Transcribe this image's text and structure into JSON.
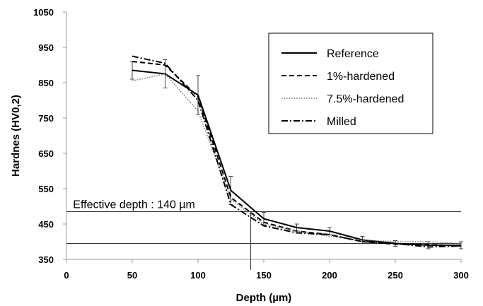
{
  "chart_data": {
    "type": "line",
    "title": "",
    "xlabel": "Depth (µm)",
    "ylabel": "Hardnes (HV0,2)",
    "xlim": [
      0,
      300
    ],
    "ylim": [
      350,
      1050
    ],
    "xticks": [
      0,
      50,
      100,
      150,
      200,
      250,
      300
    ],
    "yticks": [
      350,
      450,
      550,
      650,
      750,
      850,
      950,
      1050
    ],
    "grid": false,
    "legend_position": "top-right",
    "x": [
      50,
      75,
      100,
      125,
      150,
      175,
      200,
      225,
      250,
      275,
      300
    ],
    "series": [
      {
        "name": "Reference",
        "dash": "solid",
        "color": "#000000",
        "values": [
          885,
          875,
          815,
          545,
          465,
          440,
          430,
          405,
          395,
          390,
          390
        ],
        "error": [
          25,
          40,
          55,
          40,
          18,
          10,
          10,
          10,
          8,
          10,
          10
        ]
      },
      {
        "name": "1%-hardened",
        "dash": "dashed",
        "color": "#000000",
        "values": [
          910,
          900,
          810,
          525,
          455,
          430,
          420,
          400,
          393,
          392,
          388
        ]
      },
      {
        "name": "7.5%-hardened",
        "dash": "dotted",
        "color": "#777777",
        "values": [
          855,
          875,
          770,
          520,
          450,
          430,
          415,
          405,
          400,
          400,
          395
        ]
      },
      {
        "name": "Milled",
        "dash": "dashdot",
        "color": "#000000",
        "values": [
          925,
          905,
          800,
          505,
          445,
          425,
          420,
          400,
          395,
          385,
          388
        ]
      }
    ],
    "annotations": [
      {
        "text": "Effective depth : 140 µm",
        "x": 5,
        "y": 495
      }
    ],
    "reference_lines": {
      "horizontal": [
        485,
        395
      ],
      "vertical": 140
    }
  }
}
